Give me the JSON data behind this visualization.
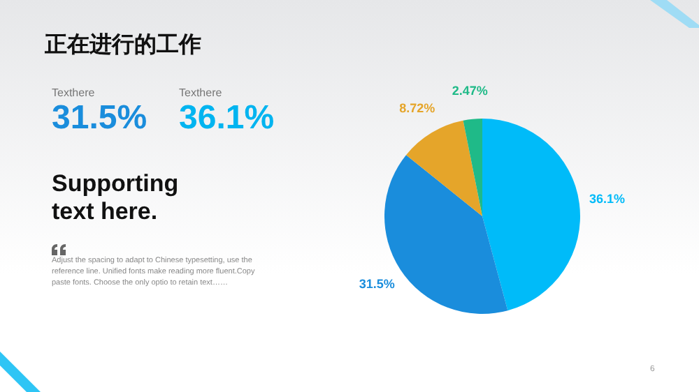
{
  "chart_data": {
    "type": "pie",
    "title": "正在进行的工作",
    "annotations": [
      "Texthere",
      "31.5%",
      "Texthere",
      "36.1%",
      "Supporting text here.",
      "Adjust the spacing to adapt to Chinese typesetting, use the reference line. Unified fonts make reading more fluent.Copy paste fonts. Choose the only optio to retain text……",
      "6"
    ],
    "categories": [
      null,
      null,
      null,
      null
    ],
    "values": [
      36.1,
      31.5,
      8.72,
      2.47
    ],
    "colors": [
      "#00bbf9",
      "#1a8ddc",
      "#e5a52a",
      "#1fba88"
    ],
    "value_labels": [
      "36.1%",
      "31.5%",
      "8.72%",
      "2.47%"
    ]
  }
}
